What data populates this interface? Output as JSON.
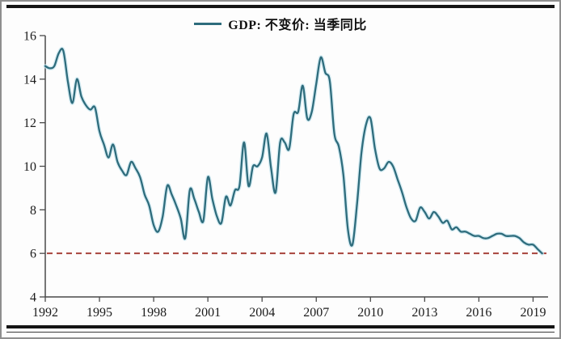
{
  "page": {
    "background": "#fdfdfd",
    "border_color": "#8f8f8f",
    "rule_color": "#141414"
  },
  "legend": {
    "label": "GDP: 不变价: 当季同比",
    "swatch_color": "#2e6c7c"
  },
  "chart_data": {
    "type": "line",
    "title": "GDP: 不变价: 当季同比",
    "xlabel": "",
    "ylabel": "",
    "ylim": [
      4,
      16
    ],
    "y_ticks": [
      16,
      14,
      12,
      10,
      8,
      6,
      4
    ],
    "x_ticks": [
      1992,
      1995,
      1998,
      2001,
      2004,
      2007,
      2010,
      2013,
      2016,
      2019
    ],
    "grid": false,
    "legend_position": "top-center",
    "axis_color": "#4a4a4a",
    "reference_line": {
      "value": 6,
      "color": "#a8433c",
      "style": "dashed"
    },
    "series": [
      {
        "name": "GDP: 不变价: 当季同比",
        "color": "#2e6c7c",
        "halo_color": "#c8e6ef",
        "frequency": "quarterly",
        "start_year": 1992,
        "start_quarter": 1,
        "end_label": "2019Q3",
        "values": [
          14.6,
          14.5,
          14.6,
          15.2,
          15.3,
          13.9,
          12.9,
          14.0,
          13.2,
          12.8,
          12.6,
          12.7,
          11.6,
          11.0,
          10.4,
          11.0,
          10.2,
          9.8,
          9.6,
          10.2,
          9.9,
          9.5,
          8.7,
          8.2,
          7.3,
          7.0,
          7.7,
          9.1,
          8.7,
          8.2,
          7.6,
          6.7,
          8.9,
          8.5,
          7.9,
          7.5,
          9.5,
          8.5,
          7.7,
          7.4,
          8.6,
          8.2,
          8.9,
          9.1,
          11.1,
          9.1,
          10.0,
          10.0,
          10.4,
          11.5,
          9.9,
          8.8,
          11.1,
          11.1,
          10.8,
          12.4,
          12.5,
          13.7,
          12.2,
          12.5,
          13.8,
          15.0,
          14.3,
          13.9,
          11.5,
          10.9,
          9.6,
          7.1,
          6.4,
          8.2,
          10.6,
          11.9,
          12.2,
          10.8,
          9.9,
          9.9,
          10.2,
          10.0,
          9.4,
          8.8,
          8.1,
          7.6,
          7.5,
          8.1,
          7.9,
          7.6,
          7.9,
          7.7,
          7.4,
          7.5,
          7.1,
          7.2,
          7.0,
          7.0,
          6.9,
          6.8,
          6.8,
          6.7,
          6.7,
          6.8,
          6.9,
          6.9,
          6.8,
          6.8,
          6.8,
          6.7,
          6.5,
          6.4,
          6.4,
          6.2,
          6.0
        ]
      }
    ]
  }
}
